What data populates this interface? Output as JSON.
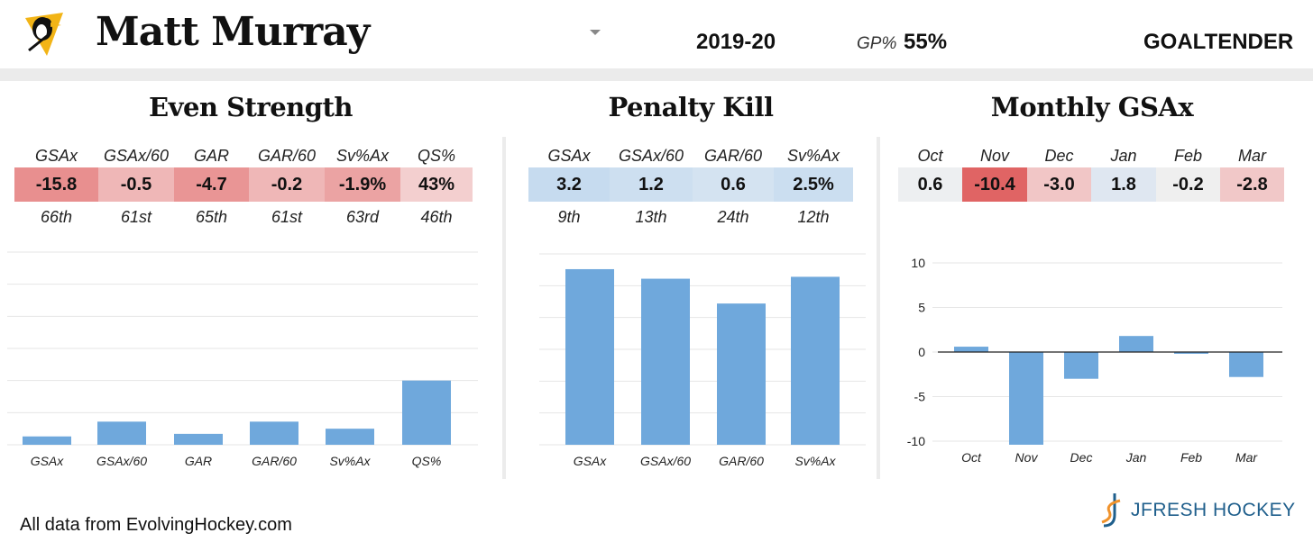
{
  "header": {
    "player_name": "Matt Murray",
    "season": "2019-20",
    "gp_label": "GP%",
    "gp_value": "55%",
    "position": "GOALTENDER",
    "team_logo_icon": "penguins-logo-icon"
  },
  "even_strength": {
    "title": "Even Strength",
    "stats": [
      {
        "label": "GSAx",
        "value": "-15.8",
        "rank": "66th",
        "color": "#e88f8f"
      },
      {
        "label": "GSAx/60",
        "value": "-0.5",
        "rank": "61st",
        "color": "#efb7b7"
      },
      {
        "label": "GAR",
        "value": "-4.7",
        "rank": "65th",
        "color": "#e99595"
      },
      {
        "label": "GAR/60",
        "value": "-0.2",
        "rank": "61st",
        "color": "#efb7b7"
      },
      {
        "label": "Sv%Ax",
        "value": "-1.9%",
        "rank": "63rd",
        "color": "#eba3a3"
      },
      {
        "label": "QS%",
        "value": "43%",
        "rank": "46th",
        "color": "#f3cfcf"
      }
    ]
  },
  "penalty_kill": {
    "title": "Penalty Kill",
    "stats": [
      {
        "label": "GSAx",
        "value": "3.2",
        "rank": "9th",
        "color": "#c6dbef"
      },
      {
        "label": "GSAx/60",
        "value": "1.2",
        "rank": "13th",
        "color": "#cddff0"
      },
      {
        "label": "GAR/60",
        "value": "0.6",
        "rank": "24th",
        "color": "#d4e3f1"
      },
      {
        "label": "Sv%Ax",
        "value": "2.5%",
        "rank": "12th",
        "color": "#cbdef0"
      }
    ]
  },
  "monthly": {
    "title": "Monthly GSAx",
    "stats": [
      {
        "label": "Oct",
        "value": "0.6",
        "color": "#edeff1"
      },
      {
        "label": "Nov",
        "value": "-10.4",
        "color": "#e06464"
      },
      {
        "label": "Dec",
        "value": "-3.0",
        "color": "#f1c6c6"
      },
      {
        "label": "Jan",
        "value": "1.8",
        "color": "#dfe7f1"
      },
      {
        "label": "Feb",
        "value": "-0.2",
        "color": "#efefef"
      },
      {
        "label": "Mar",
        "value": "-2.8",
        "color": "#f1c8c8"
      }
    ]
  },
  "chart_data": [
    {
      "type": "bar",
      "categories": [
        "GSAx",
        "GSAx/60",
        "GAR",
        "GAR/60",
        "Sv%Ax",
        "QS%"
      ],
      "values": [
        1.3,
        3.6,
        1.7,
        3.6,
        2.5,
        10.0
      ],
      "ylim": [
        0,
        30
      ],
      "grid": true,
      "color": "#6fa8dc"
    },
    {
      "type": "bar",
      "categories": [
        "GSAx",
        "GSAx/60",
        "GAR/60",
        "Sv%Ax"
      ],
      "values": [
        92,
        87,
        74,
        88
      ],
      "ylim": [
        0,
        100
      ],
      "grid": true,
      "color": "#6fa8dc"
    },
    {
      "type": "bar",
      "categories": [
        "Oct",
        "Nov",
        "Dec",
        "Jan",
        "Feb",
        "Mar"
      ],
      "values": [
        0.6,
        -10.4,
        -3.0,
        1.8,
        -0.2,
        -2.8
      ],
      "ylim": [
        -10,
        10
      ],
      "yticks": [
        "10",
        "5",
        "0",
        "-5",
        "-10"
      ],
      "grid": true,
      "color": "#6fa8dc"
    }
  ],
  "footer": {
    "credit": "All data from EvolvingHockey.com",
    "brand": "JFRESH HOCKEY"
  }
}
